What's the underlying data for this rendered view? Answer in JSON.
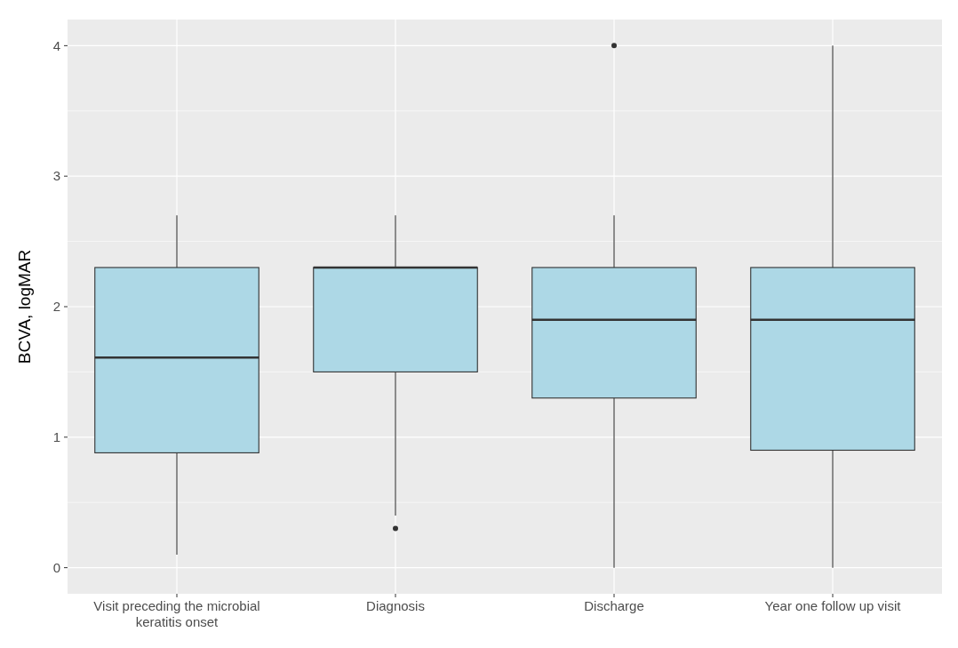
{
  "chart_data": {
    "type": "box",
    "ylabel": "BCVA, logMAR",
    "categories": [
      "Visit preceding the microbial\nkeratitis onset",
      "Diagnosis",
      "Discharge",
      "Year one follow up visit"
    ],
    "boxes": [
      {
        "low": 0.1,
        "q1": 0.88,
        "median": 1.61,
        "q3": 2.3,
        "high": 2.7
      },
      {
        "low": 0.4,
        "q1": 1.5,
        "median": 2.3,
        "q3": 2.3,
        "high": 2.7,
        "outliers": [
          0.3
        ]
      },
      {
        "low": 0,
        "q1": 1.3,
        "median": 1.9,
        "q3": 2.3,
        "high": 2.7,
        "outliers": [
          4
        ]
      },
      {
        "low": 0,
        "q1": 0.9,
        "median": 1.9,
        "q3": 2.3,
        "high": 4
      }
    ],
    "color": "#add8e6",
    "ylim": [
      -0.2,
      4.2
    ],
    "yticks": [
      0,
      1,
      2,
      3,
      4
    ],
    "grid": true
  }
}
